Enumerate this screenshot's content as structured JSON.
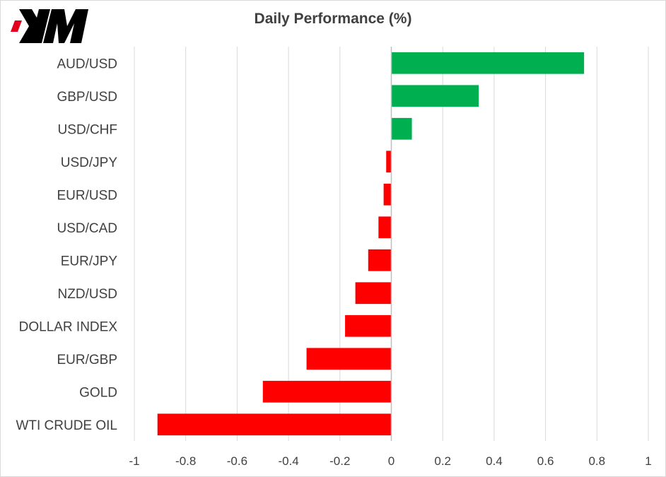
{
  "chart_data": {
    "type": "bar",
    "orientation": "horizontal",
    "title": "Daily Performance (%)",
    "categories": [
      "AUD/USD",
      "GBP/USD",
      "USD/CHF",
      "USD/JPY",
      "EUR/USD",
      "USD/CAD",
      "EUR/JPY",
      "NZD/USD",
      "DOLLAR INDEX",
      "EUR/GBP",
      "GOLD",
      "WTI CRUDE OIL"
    ],
    "values": [
      0.75,
      0.34,
      0.08,
      -0.02,
      -0.03,
      -0.05,
      -0.09,
      -0.14,
      -0.18,
      -0.33,
      -0.5,
      -0.91
    ],
    "xlim": [
      -1,
      1
    ],
    "xticks": [
      "-1",
      "-0.8",
      "-0.6",
      "-0.4",
      "-0.2",
      "0",
      "0.2",
      "0.4",
      "0.6",
      "0.8",
      "1"
    ],
    "xlabel": "",
    "ylabel": "",
    "grid": true,
    "legend": "none",
    "colors": {
      "positive": "#00b050",
      "negative": "#ff0000",
      "grid": "#d9d9d9",
      "axis": "#bfbfbf",
      "text": "#404040"
    }
  },
  "brand": {
    "logo_text": "XM",
    "logo_color": "#000000",
    "logo_accent": "#e3001b"
  }
}
